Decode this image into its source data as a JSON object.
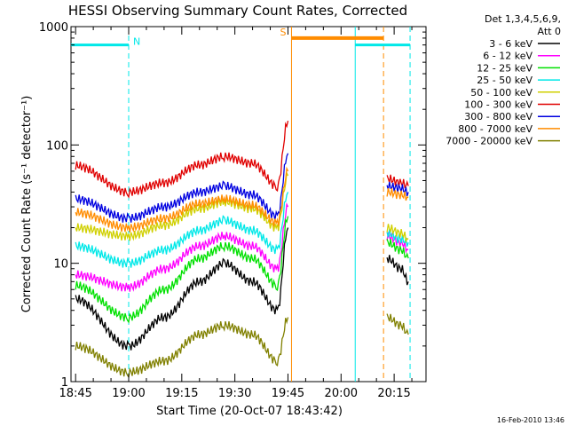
{
  "chart_data": {
    "type": "line",
    "title": "HESSI Observing Summary Count Rates, Corrected",
    "xlabel": "Start Time (20-Oct-07 18:43:42)",
    "ylabel": "Corrected Count Rate (s⁻¹ detector⁻¹)",
    "yscale": "log",
    "ylim": [
      1,
      1000
    ],
    "xlim": [
      "18:43:42",
      "20:24:00"
    ],
    "y_ticks": [
      "1",
      "10",
      "100",
      "1000"
    ],
    "x_ticks": [
      {
        "t": "18:45",
        "label": "18:45"
      },
      {
        "t": "19:00",
        "label": "19:00"
      },
      {
        "t": "19:15",
        "label": "19:15"
      },
      {
        "t": "19:30",
        "label": "19:30"
      },
      {
        "t": "19:45",
        "label": "19:45"
      },
      {
        "t": "20:00",
        "label": "20:00"
      },
      {
        "t": "20:15",
        "label": "20:15"
      }
    ],
    "legend_placement": "right",
    "legend_header": [
      "Det 1,3,4,5,6,9,",
      "Att 0"
    ],
    "footer": "16-Feb-2010 13:46",
    "data_gaps": [
      [
        "19:46:00",
        "20:12:00"
      ]
    ],
    "series": [
      {
        "name": "3 - 6 keV",
        "color": "#000000",
        "x": [
          "18:45",
          "19:00",
          "19:10",
          "19:20",
          "19:27",
          "19:35",
          "19:42",
          "19:45",
          "20:13",
          "20:17",
          "20:19"
        ],
        "y": [
          5,
          2,
          3.5,
          7,
          10,
          7,
          4,
          20,
          11,
          9,
          7
        ]
      },
      {
        "name": "6 - 12 keV",
        "color": "#ff00ff",
        "x": [
          "18:45",
          "19:00",
          "19:10",
          "19:20",
          "19:27",
          "19:35",
          "19:42",
          "19:45",
          "20:13",
          "20:17",
          "20:19"
        ],
        "y": [
          8,
          6.3,
          9,
          14,
          17,
          14,
          9,
          30,
          17,
          15,
          13
        ]
      },
      {
        "name": "12 - 25 keV",
        "color": "#00e000",
        "x": [
          "18:45",
          "19:00",
          "19:10",
          "19:20",
          "19:27",
          "19:35",
          "19:42",
          "19:45",
          "20:13",
          "20:17",
          "20:19"
        ],
        "y": [
          6.5,
          3.5,
          6,
          11,
          14,
          11,
          6.5,
          25,
          15,
          13,
          11
        ]
      },
      {
        "name": "25 - 50 keV",
        "color": "#00e8e8",
        "x": [
          "18:45",
          "19:00",
          "19:10",
          "19:20",
          "19:27",
          "19:35",
          "19:42",
          "19:45",
          "20:13",
          "20:17",
          "20:19"
        ],
        "y": [
          14,
          10,
          13,
          19,
          23,
          19,
          13,
          40,
          18,
          16,
          15
        ]
      },
      {
        "name": "50 - 100 keV",
        "color": "#d0d000",
        "x": [
          "18:45",
          "19:00",
          "19:10",
          "19:20",
          "19:27",
          "19:35",
          "19:42",
          "19:45",
          "20:13",
          "20:17",
          "20:19"
        ],
        "y": [
          20,
          17,
          21,
          29,
          33,
          29,
          20,
          55,
          20,
          18,
          16
        ]
      },
      {
        "name": "100 - 300 keV",
        "color": "#e00000",
        "x": [
          "18:45",
          "19:00",
          "19:10",
          "19:20",
          "19:27",
          "19:35",
          "19:42",
          "19:45",
          "20:13",
          "20:17",
          "20:19"
        ],
        "y": [
          67,
          40,
          48,
          68,
          80,
          70,
          45,
          160,
          52,
          48,
          45
        ]
      },
      {
        "name": "300 - 800 keV",
        "color": "#0000e0",
        "x": [
          "18:45",
          "19:00",
          "19:10",
          "19:20",
          "19:27",
          "19:35",
          "19:42",
          "19:45",
          "20:13",
          "20:17",
          "20:19"
        ],
        "y": [
          35,
          24,
          30,
          40,
          45,
          38,
          25,
          85,
          45,
          43,
          40
        ]
      },
      {
        "name": "800 - 7000 keV",
        "color": "#ff8c00",
        "x": [
          "18:45",
          "19:00",
          "19:10",
          "19:20",
          "19:27",
          "19:35",
          "19:42",
          "19:45",
          "20:13",
          "20:17",
          "20:19"
        ],
        "y": [
          27,
          20,
          24,
          32,
          35,
          31,
          22,
          60,
          40,
          38,
          36
        ]
      },
      {
        "name": "7000 - 20000 keV",
        "color": "#808000",
        "x": [
          "18:45",
          "19:00",
          "19:10",
          "19:20",
          "19:27",
          "19:35",
          "19:42",
          "19:45",
          "20:13",
          "20:17",
          "20:19"
        ],
        "y": [
          2,
          1.2,
          1.5,
          2.5,
          3,
          2.5,
          1.5,
          3.5,
          3.5,
          3,
          2.5
        ]
      }
    ],
    "annotations": [
      {
        "label": "N",
        "color": "#00e8e8",
        "line_x": [
          "18:43:42",
          "19:00:00"
        ],
        "line_y": 700,
        "marker_t": "19:00:00"
      },
      {
        "label": "S",
        "color": "#ff8c00",
        "line_x": [
          "19:46:00",
          "20:12:00"
        ],
        "line_y": 800,
        "marker_t": "19:46:00"
      }
    ],
    "event_lines": [
      {
        "t": "19:00:00",
        "color": "#00e8e8",
        "style": "dashed"
      },
      {
        "t": "19:46:00",
        "color": "#ff8c00",
        "style": "solid"
      },
      {
        "t": "20:04:00",
        "color": "#00e8e8",
        "style": "solid"
      },
      {
        "t": "20:12:00",
        "color": "#ff8c00",
        "style": "dashed"
      },
      {
        "t": "20:19:30",
        "color": "#00e8e8",
        "style": "dashed"
      }
    ],
    "cyan_top_segments": [
      [
        "18:43:42",
        "19:00:00"
      ],
      [
        "20:04:00",
        "20:19:30"
      ]
    ]
  }
}
